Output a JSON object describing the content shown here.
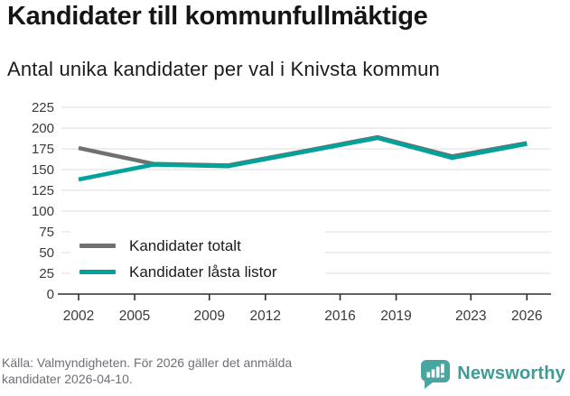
{
  "header": {
    "title": "Kandidater till kommunfullmäktige",
    "subtitle": "Antal unika kandidater per val i Knivsta kommun"
  },
  "chart_data": {
    "type": "line",
    "title": "Kandidater till kommunfullmäktige",
    "subtitle": "Antal unika kandidater per val i Knivsta kommun",
    "x": [
      2002,
      2006,
      2010,
      2014,
      2018,
      2022,
      2026
    ],
    "series": [
      {
        "name": "Kandidater totalt",
        "color": "#707070",
        "values": [
          176,
          157,
          155,
          172,
          189,
          166,
          182
        ]
      },
      {
        "name": "Kandidater låsta listor",
        "color": "#00a29a",
        "values": [
          138,
          156,
          154,
          171,
          188,
          164,
          181
        ]
      }
    ],
    "x_tick_labels": [
      2002,
      2005,
      2009,
      2012,
      2016,
      2019,
      2023,
      2026
    ],
    "y_ticks": [
      0,
      25,
      50,
      75,
      100,
      125,
      150,
      175,
      200,
      225
    ],
    "xlim": [
      2002,
      2026
    ],
    "ylim": [
      0,
      225
    ],
    "grid": true,
    "legend_position": "inside-bottom-left",
    "grid_color": "#dcdcdc",
    "axis_color": "#2e2e2e",
    "tick_label_color": "#3a3a3a"
  },
  "footer": {
    "source_line1": "Källa: Valmyndigheten. För 2026 gäller det anmälda",
    "source_line2": "kandidater 2026-04-10.",
    "logo_text": "Newsworthy",
    "logo_color": "#3e9c96",
    "logo_icon_color": "#4aa5a0"
  }
}
